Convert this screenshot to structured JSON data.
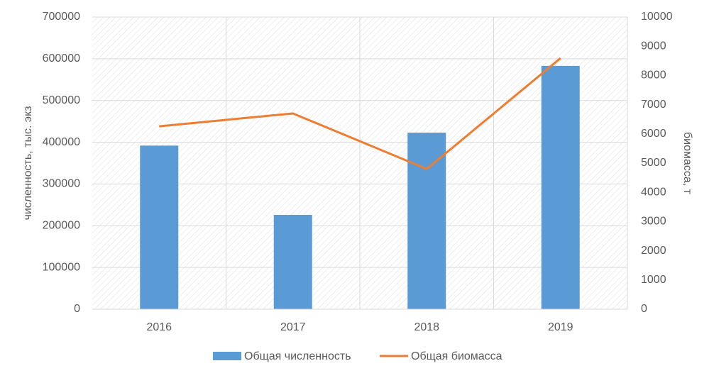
{
  "chart_data": {
    "type": "combo",
    "categories": [
      "2016",
      "2017",
      "2018",
      "2019"
    ],
    "series": [
      {
        "name": "Общая численность",
        "type": "bar",
        "color": "#5b9bd5",
        "values": [
          392000,
          226000,
          423000,
          583000
        ]
      },
      {
        "name": "Общая биомасса",
        "type": "line",
        "axis": "y2",
        "color": "#ed7d31",
        "values": [
          6260,
          6700,
          4800,
          8590
        ]
      }
    ],
    "y_label": "численность, тыс. экз",
    "y2_label": "биомасса, т",
    "ylim": [
      0,
      700000
    ],
    "yticks": [
      0,
      100000,
      200000,
      300000,
      400000,
      500000,
      600000,
      700000
    ],
    "y2lim": [
      0,
      10000
    ],
    "y2ticks": [
      0,
      1000,
      2000,
      3000,
      4000,
      5000,
      6000,
      7000,
      8000,
      9000,
      10000
    ],
    "grid": true,
    "legend": "bottom"
  }
}
